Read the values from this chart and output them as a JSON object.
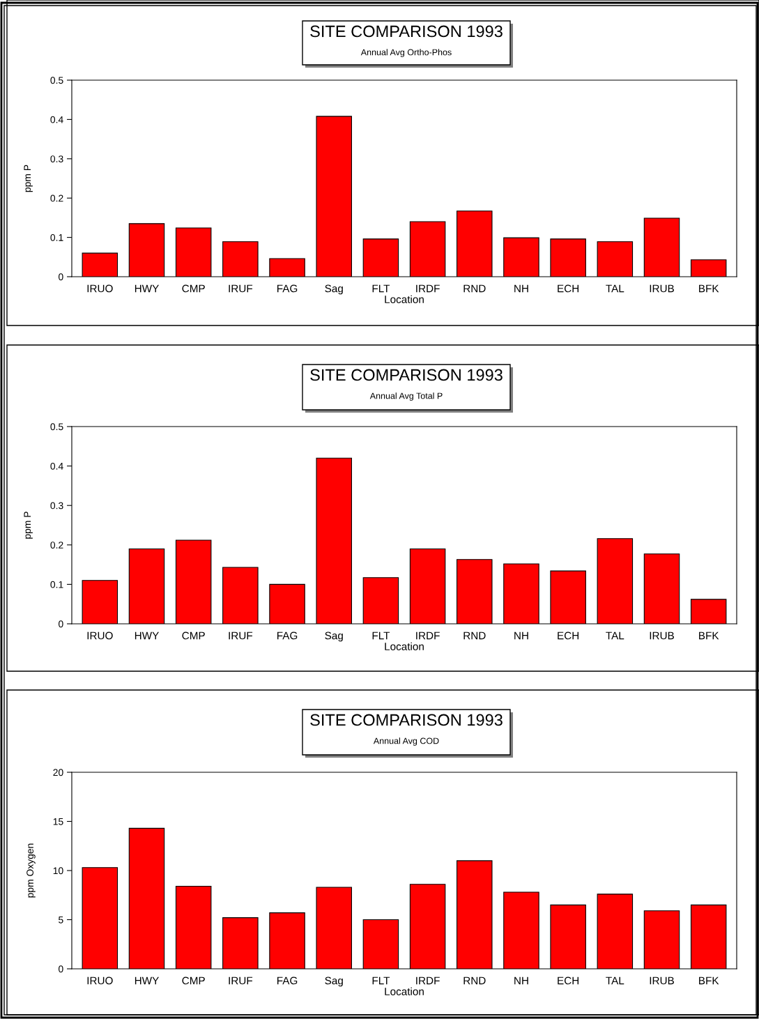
{
  "chart_data": [
    {
      "type": "bar",
      "title": "SITE COMPARISON 1993",
      "subtitle": "Annual Avg Ortho-Phos",
      "xlabel": "Location",
      "ylabel": "ppm P",
      "color": "#ff0000",
      "categories": [
        "IRUO",
        "HWY",
        "CMP",
        "IRUF",
        "FAG",
        "Sag",
        "FLT",
        "IRDF",
        "RND",
        "NH",
        "ECH",
        "TAL",
        "IRUB",
        "BFK"
      ],
      "values": [
        0.06,
        0.135,
        0.124,
        0.089,
        0.046,
        0.408,
        0.096,
        0.14,
        0.167,
        0.099,
        0.096,
        0.089,
        0.149,
        0.043
      ],
      "ylim": [
        0,
        0.5
      ],
      "yticks": [
        {
          "value": 0,
          "label": "0"
        },
        0.1,
        0.2,
        0.3,
        0.4,
        0.5
      ],
      "grid": false
    },
    {
      "type": "bar",
      "title": "SITE COMPARISON 1993",
      "subtitle": "Annual Avg Total P",
      "xlabel": "Location",
      "ylabel": "ppm P",
      "color": "#ff0000",
      "categories": [
        "IRUO",
        "HWY",
        "CMP",
        "IRUF",
        "FAG",
        "Sag",
        "FLT",
        "IRDF",
        "RND",
        "NH",
        "ECH",
        "TAL",
        "IRUB",
        "BFK"
      ],
      "values": [
        0.11,
        0.19,
        0.212,
        0.143,
        0.1,
        0.42,
        0.117,
        0.19,
        0.163,
        0.152,
        0.134,
        0.216,
        0.177,
        0.062
      ],
      "ylim": [
        0,
        0.5
      ],
      "yticks": [
        {
          "value": 0,
          "label": "0"
        },
        0.1,
        0.2,
        0.3,
        0.4,
        0.5
      ],
      "grid": false
    },
    {
      "type": "bar",
      "title": "SITE COMPARISON 1993",
      "subtitle": "Annual Avg COD",
      "xlabel": "Location",
      "ylabel": "ppm Oxygen",
      "color": "#ff0000",
      "categories": [
        "IRUO",
        "HWY",
        "CMP",
        "IRUF",
        "FAG",
        "Sag",
        "FLT",
        "IRDF",
        "RND",
        "NH",
        "ECH",
        "TAL",
        "IRUB",
        "BFK"
      ],
      "values": [
        10.3,
        14.3,
        8.4,
        5.2,
        5.7,
        8.3,
        5.0,
        8.6,
        11.0,
        7.8,
        6.5,
        7.6,
        5.9,
        6.5
      ],
      "ylim": [
        0,
        20
      ],
      "yticks": [
        0,
        5,
        10,
        15,
        20
      ],
      "grid": false
    }
  ]
}
